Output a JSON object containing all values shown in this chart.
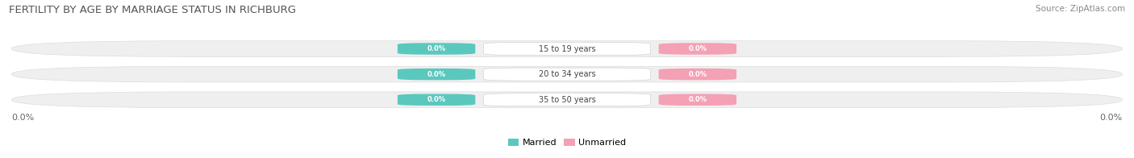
{
  "title": "FERTILITY BY AGE BY MARRIAGE STATUS IN RICHBURG",
  "source": "Source: ZipAtlas.com",
  "categories": [
    "15 to 19 years",
    "20 to 34 years",
    "35 to 50 years"
  ],
  "married_values": [
    0.0,
    0.0,
    0.0
  ],
  "unmarried_values": [
    0.0,
    0.0,
    0.0
  ],
  "married_color": "#5BC8BE",
  "unmarried_color": "#F4A0B5",
  "bar_bg_color": "#EFEFEF",
  "bar_border_color": "#DDDDDD",
  "fig_bg_color": "#FFFFFF",
  "title_fontsize": 9.5,
  "source_fontsize": 7.5,
  "x_left_label": "0.0%",
  "x_right_label": "0.0%",
  "legend_married": "Married",
  "legend_unmarried": "Unmarried",
  "value_label": "0.0%"
}
